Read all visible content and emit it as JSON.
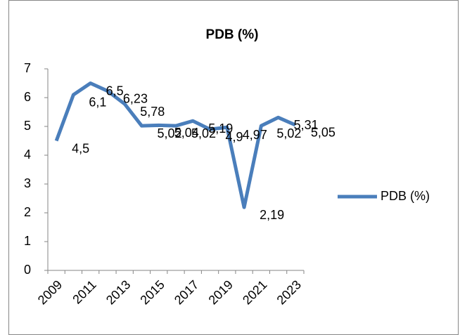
{
  "chart_data": {
    "type": "line",
    "title": "PDB (%)",
    "categories": [
      "2009",
      null,
      "2011",
      null,
      "2013",
      null,
      "2015",
      null,
      "2017",
      null,
      "2019",
      null,
      "2021",
      null,
      "2023"
    ],
    "series": [
      {
        "name": "PDB (%)",
        "color": "#4a7ebb",
        "values": [
          4.5,
          6.1,
          6.5,
          6.23,
          5.78,
          5.02,
          5.04,
          5.02,
          5.19,
          4.9,
          4.97,
          2.19,
          5.02,
          5.31,
          5.05
        ],
        "value_labels": [
          "4,5",
          "6,1",
          "6,5",
          "6,23",
          "5,78",
          "5,02",
          "5,04",
          "5,02",
          "5,19",
          "4,9",
          "4,97",
          "2,19",
          "5,02",
          "5,31",
          "5,05"
        ]
      }
    ],
    "ylim": [
      0,
      7
    ],
    "yticks": [
      0,
      1,
      2,
      3,
      4,
      5,
      6,
      7
    ],
    "grid": false,
    "legend": "right"
  }
}
